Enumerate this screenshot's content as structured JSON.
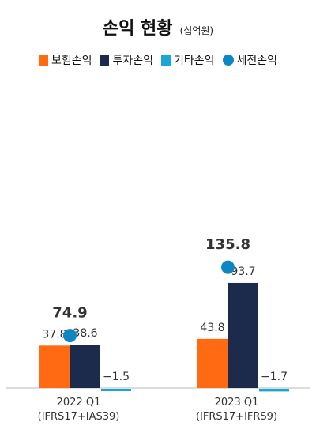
{
  "chart_data": {
    "type": "bar",
    "title": "손익 현황",
    "unit": "(십억원)",
    "legend_placement": "top",
    "categories": [
      [
        "2022 Q1",
        "(IFRS17+IAS39)"
      ],
      [
        "2023 Q1",
        "(IFRS17+IFRS9)"
      ]
    ],
    "series": [
      {
        "name": "보험손익",
        "kind": "bar",
        "color": "#FF6A13",
        "values": [
          37.8,
          43.8
        ],
        "labels": [
          "37.8",
          "43.8"
        ]
      },
      {
        "name": "투자손익",
        "kind": "bar",
        "color": "#1C2B4B",
        "values": [
          38.6,
          93.7
        ],
        "labels": [
          "38.6",
          "93.7"
        ]
      },
      {
        "name": "기타손익",
        "kind": "bar",
        "color": "#1AA7D6",
        "values": [
          -1.5,
          -1.7
        ],
        "labels": [
          "−1.5",
          "−1.7"
        ]
      },
      {
        "name": "세전손익",
        "kind": "point",
        "color": "#0E86C1",
        "values": [
          74.9,
          135.8
        ],
        "labels": [
          "74.9",
          "135.8"
        ]
      }
    ],
    "ylim": [
      -2,
      150
    ],
    "grid": false
  }
}
